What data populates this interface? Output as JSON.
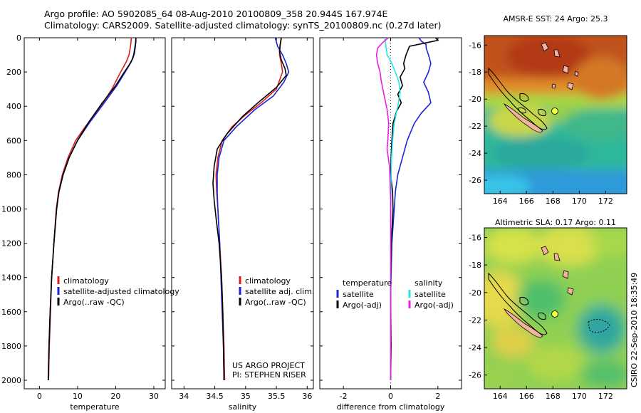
{
  "header": {
    "line1": "Argo profile: AO 5902085_64 08-Aug-2010 20100809_358 20.944S 167.974E",
    "line2": "Climatology: CARS2009. Satellite-adjusted climatology: synTS_20100809.nc (0.27d later)"
  },
  "colors": {
    "red": "#d81e1e",
    "blue": "#1a26d6",
    "black": "#000000",
    "cyan": "#22e6e6",
    "magenta": "#e61ee6"
  },
  "depth_axis": {
    "range": [
      0,
      2050
    ],
    "ticks": [
      0,
      200,
      400,
      600,
      800,
      1000,
      1200,
      1400,
      1600,
      1800,
      2000
    ]
  },
  "chart_data": [
    {
      "id": "temperature",
      "type": "line",
      "xlabel": "temperature",
      "xlim": [
        -4,
        33
      ],
      "xticks": [
        0,
        10,
        20,
        30
      ],
      "legend": [
        "climatology",
        "satellite-adjusted climatology",
        "Argo(..raw -QC)"
      ],
      "legend_keys": [
        "red",
        "blue",
        "black"
      ],
      "series": [
        {
          "name": "climatology",
          "color": "red",
          "points": [
            [
              24.1,
              0
            ],
            [
              24.0,
              30
            ],
            [
              23.8,
              60
            ],
            [
              23.5,
              100
            ],
            [
              22.8,
              140
            ],
            [
              21.3,
              200
            ],
            [
              19.0,
              300
            ],
            [
              15.5,
              420
            ],
            [
              12.0,
              520
            ],
            [
              9.5,
              600
            ],
            [
              7.5,
              700
            ],
            [
              6.0,
              800
            ],
            [
              5.0,
              900
            ],
            [
              4.4,
              1000
            ],
            [
              3.8,
              1200
            ],
            [
              3.2,
              1400
            ],
            [
              2.9,
              1600
            ],
            [
              2.6,
              1800
            ],
            [
              2.4,
              2000
            ]
          ]
        },
        {
          "name": "satellite-adjusted climatology",
          "color": "blue",
          "points": [
            [
              25.3,
              0
            ],
            [
              25.2,
              30
            ],
            [
              25.0,
              60
            ],
            [
              24.7,
              100
            ],
            [
              24.1,
              140
            ],
            [
              22.5,
              200
            ],
            [
              20.3,
              280
            ],
            [
              17.0,
              380
            ],
            [
              13.0,
              500
            ],
            [
              10.0,
              600
            ],
            [
              7.8,
              700
            ],
            [
              6.2,
              800
            ],
            [
              5.1,
              900
            ],
            [
              4.5,
              1000
            ],
            [
              3.8,
              1200
            ],
            [
              3.2,
              1400
            ],
            [
              2.8,
              1600
            ],
            [
              2.5,
              1800
            ],
            [
              2.3,
              2000
            ]
          ]
        },
        {
          "name": "Argo(..raw -QC)",
          "color": "black",
          "points": [
            [
              25.3,
              0
            ],
            [
              25.3,
              20
            ],
            [
              25.2,
              40
            ],
            [
              25.1,
              60
            ],
            [
              24.9,
              90
            ],
            [
              24.5,
              120
            ],
            [
              23.5,
              160
            ],
            [
              22.0,
              210
            ],
            [
              20.0,
              280
            ],
            [
              16.5,
              380
            ],
            [
              13.0,
              490
            ],
            [
              10.0,
              600
            ],
            [
              7.8,
              700
            ],
            [
              6.2,
              800
            ],
            [
              5.1,
              900
            ],
            [
              4.5,
              1000
            ],
            [
              3.8,
              1200
            ],
            [
              3.2,
              1400
            ],
            [
              2.8,
              1600
            ],
            [
              2.5,
              1800
            ],
            [
              2.3,
              2000
            ]
          ]
        }
      ]
    },
    {
      "id": "salinity",
      "type": "line",
      "xlabel": "salinity",
      "xlim": [
        33.8,
        36.1
      ],
      "xticks": [
        34,
        34.5,
        35,
        35.5,
        36
      ],
      "legend": [
        "climatology",
        "satellite adj. clim.",
        "Argo(..raw -QC)"
      ],
      "legend_keys": [
        "red",
        "blue",
        "black"
      ],
      "annotation": [
        "US ARGO PROJECT",
        "PI: STEPHEN RISER"
      ],
      "series": [
        {
          "name": "climatology",
          "color": "red",
          "points": [
            [
              35.58,
              0
            ],
            [
              35.56,
              50
            ],
            [
              35.55,
              100
            ],
            [
              35.58,
              150
            ],
            [
              35.6,
              200
            ],
            [
              35.5,
              300
            ],
            [
              35.25,
              380
            ],
            [
              35.0,
              450
            ],
            [
              34.78,
              520
            ],
            [
              34.62,
              600
            ],
            [
              34.55,
              700
            ],
            [
              34.52,
              800
            ],
            [
              34.53,
              900
            ],
            [
              34.55,
              1000
            ],
            [
              34.58,
              1200
            ],
            [
              34.61,
              1400
            ],
            [
              34.63,
              1600
            ],
            [
              34.65,
              1800
            ],
            [
              34.66,
              2000
            ]
          ]
        },
        {
          "name": "satellite adj. clim.",
          "color": "blue",
          "points": [
            [
              35.48,
              0
            ],
            [
              35.52,
              50
            ],
            [
              35.6,
              100
            ],
            [
              35.66,
              150
            ],
            [
              35.7,
              200
            ],
            [
              35.62,
              260
            ],
            [
              35.45,
              340
            ],
            [
              35.15,
              420
            ],
            [
              34.85,
              520
            ],
            [
              34.65,
              600
            ],
            [
              34.57,
              700
            ],
            [
              34.54,
              800
            ],
            [
              34.54,
              900
            ],
            [
              34.55,
              1000
            ],
            [
              34.58,
              1200
            ],
            [
              34.6,
              1400
            ],
            [
              34.62,
              1600
            ],
            [
              34.64,
              1800
            ],
            [
              34.65,
              2000
            ]
          ]
        },
        {
          "name": "Argo(..raw -QC)",
          "color": "black",
          "points": [
            [
              35.58,
              0
            ],
            [
              35.56,
              40
            ],
            [
              35.55,
              80
            ],
            [
              35.58,
              130
            ],
            [
              35.64,
              180
            ],
            [
              35.66,
              220
            ],
            [
              35.5,
              290
            ],
            [
              35.2,
              380
            ],
            [
              34.95,
              460
            ],
            [
              34.7,
              560
            ],
            [
              34.54,
              650
            ],
            [
              34.49,
              750
            ],
            [
              34.47,
              850
            ],
            [
              34.49,
              950
            ],
            [
              34.52,
              1050
            ],
            [
              34.57,
              1200
            ],
            [
              34.61,
              1400
            ],
            [
              34.63,
              1600
            ],
            [
              34.64,
              1800
            ],
            [
              34.65,
              2000
            ]
          ]
        }
      ]
    },
    {
      "id": "difference",
      "type": "line",
      "xlabel": "difference from climatology",
      "xlim": [
        -3,
        3
      ],
      "xticks": [
        -2,
        0,
        2
      ],
      "legend_left_title": "temperature",
      "legend_right_title": "salinity",
      "legend_left": [
        "satellite",
        "Argo(-adj)"
      ],
      "legend_left_keys": [
        "blue",
        "black"
      ],
      "legend_right": [
        "satellite",
        "Argo(-adj)"
      ],
      "legend_right_keys": [
        "cyan",
        "magenta"
      ],
      "series": [
        {
          "name": "temperature satellite",
          "color": "blue",
          "points": [
            [
              1.2,
              0
            ],
            [
              1.3,
              20
            ],
            [
              1.5,
              40
            ],
            [
              1.5,
              60
            ],
            [
              1.6,
              100
            ],
            [
              1.7,
              150
            ],
            [
              1.6,
              200
            ],
            [
              1.4,
              260
            ],
            [
              1.6,
              320
            ],
            [
              1.7,
              380
            ],
            [
              1.3,
              440
            ],
            [
              1.0,
              500
            ],
            [
              0.7,
              600
            ],
            [
              0.5,
              700
            ],
            [
              0.3,
              800
            ],
            [
              0.2,
              900
            ],
            [
              0.15,
              1000
            ],
            [
              0.05,
              1200
            ],
            [
              0.0,
              1500
            ],
            [
              0.0,
              1800
            ],
            [
              0.0,
              2000
            ]
          ]
        },
        {
          "name": "temperature Argo(-adj)",
          "color": "black",
          "points": [
            [
              1.9,
              0
            ],
            [
              2.0,
              15
            ],
            [
              0.8,
              50
            ],
            [
              0.65,
              100
            ],
            [
              0.55,
              150
            ],
            [
              0.6,
              180
            ],
            [
              0.4,
              230
            ],
            [
              0.5,
              280
            ],
            [
              0.3,
              330
            ],
            [
              0.45,
              380
            ],
            [
              0.25,
              430
            ],
            [
              0.1,
              500
            ],
            [
              0.05,
              600
            ],
            [
              0.02,
              700
            ],
            [
              0.0,
              800
            ],
            [
              0.08,
              900
            ],
            [
              0.1,
              1000
            ],
            [
              0.03,
              1200
            ],
            [
              0.0,
              1500
            ],
            [
              0.02,
              1800
            ],
            [
              0.0,
              2000
            ]
          ]
        },
        {
          "name": "salinity satellite",
          "color": "cyan",
          "points": [
            [
              -0.25,
              0
            ],
            [
              -0.2,
              50
            ],
            [
              -0.15,
              100
            ],
            [
              0.05,
              150
            ],
            [
              0.2,
              200
            ],
            [
              0.35,
              260
            ],
            [
              0.4,
              320
            ],
            [
              0.3,
              400
            ],
            [
              0.15,
              500
            ],
            [
              0.08,
              600
            ],
            [
              0.04,
              700
            ],
            [
              0.02,
              800
            ],
            [
              0.01,
              900
            ],
            [
              0.0,
              1000
            ],
            [
              0.0,
              1500
            ],
            [
              0.0,
              2000
            ]
          ]
        },
        {
          "name": "salinity Argo(-adj)",
          "color": "magenta",
          "points": [
            [
              -0.1,
              0
            ],
            [
              -0.35,
              30
            ],
            [
              -0.55,
              60
            ],
            [
              -0.6,
              100
            ],
            [
              -0.55,
              150
            ],
            [
              -0.45,
              200
            ],
            [
              -0.4,
              250
            ],
            [
              -0.3,
              320
            ],
            [
              -0.15,
              420
            ],
            [
              -0.08,
              500
            ],
            [
              -0.12,
              600
            ],
            [
              -0.15,
              650
            ],
            [
              -0.05,
              750
            ],
            [
              -0.02,
              850
            ],
            [
              0.0,
              950
            ],
            [
              0.0,
              1500
            ],
            [
              0.0,
              2000
            ]
          ]
        }
      ]
    },
    {
      "id": "sst_map",
      "type": "heatmap",
      "title": "AMSR-E SST: 24 Argo: 25.3",
      "xlim": [
        162.8,
        173.6
      ],
      "ylim": [
        -27,
        -15.3
      ],
      "xticks": [
        164,
        166,
        168,
        170,
        172
      ],
      "yticks": [
        -16,
        -18,
        -20,
        -22,
        -24,
        -26
      ],
      "profile_marker": [
        167.974,
        -20.944
      ]
    },
    {
      "id": "sla_map",
      "type": "heatmap",
      "title": "Altimetric SLA: 0.17 Argo: 0.11",
      "xlim": [
        162.8,
        173.6
      ],
      "ylim": [
        -27,
        -15.3
      ],
      "xticks": [
        164,
        166,
        168,
        170,
        172
      ],
      "yticks": [
        -16,
        -18,
        -20,
        -22,
        -24,
        -26
      ],
      "profile_marker": [
        167.974,
        -20.944
      ]
    }
  ],
  "footer_text": "CSIRO  22-Sep-2010 18:35:49"
}
